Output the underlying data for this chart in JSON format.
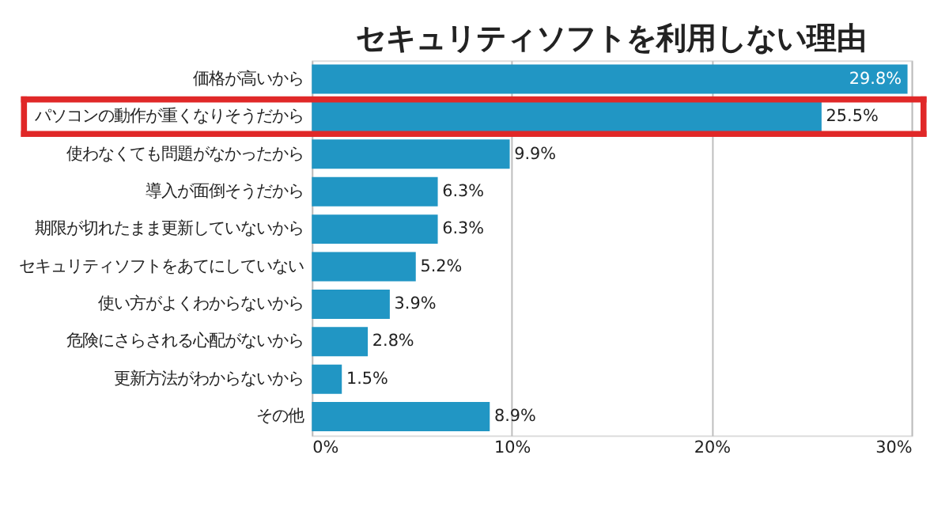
{
  "chart_data": {
    "type": "bar",
    "orientation": "horizontal",
    "title": "セキュリティソフトを利用しない理由",
    "categories": [
      "価格が高いから",
      "パソコンの動作が重くなりそうだから",
      "使わなくても問題がなかったから",
      "導入が面倒そうだから",
      "期限が切れたまま更新していないから",
      "セキュリティソフトをあてにしていない",
      "使い方がよくわからないから",
      "危険にさらされる心配がないから",
      "更新方法がわからないから",
      "その他"
    ],
    "values": [
      29.8,
      25.5,
      9.9,
      6.3,
      6.3,
      5.2,
      3.9,
      2.8,
      1.5,
      8.9
    ],
    "value_labels": [
      "29.8%",
      "25.5%",
      "9.9%",
      "6.3%",
      "6.3%",
      "5.2%",
      "3.9%",
      "2.8%",
      "1.5%",
      "8.9%"
    ],
    "color": "#2196c4",
    "xlim": [
      0,
      30
    ],
    "xticks": [
      {
        "value": 0,
        "label": "0%"
      },
      {
        "value": 10,
        "label": "10%"
      },
      {
        "value": 20,
        "label": "20%"
      },
      {
        "value": 30,
        "label": "30%"
      }
    ],
    "grid": "x"
  }
}
